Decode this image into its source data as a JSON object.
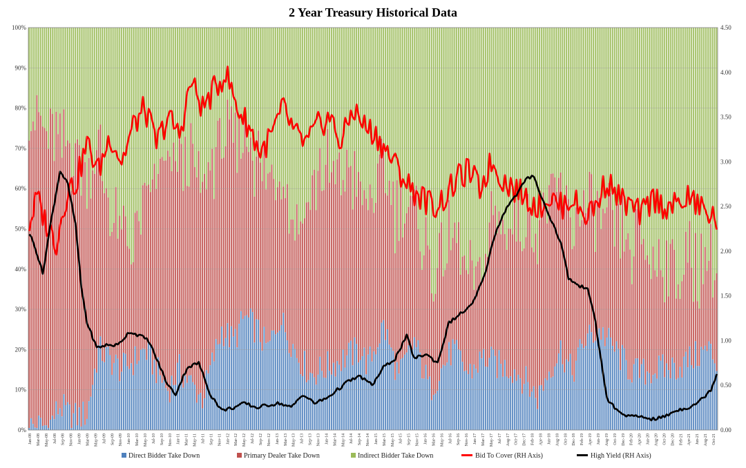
{
  "chart_data": {
    "type": "bar",
    "title": "2 Year Treasury  Historical Data",
    "stacked": true,
    "grid": true,
    "legend_position": "bottom",
    "colors": {
      "direct": "#4f81bd",
      "primary": "#c0504d",
      "indirect": "#9bbb59",
      "bid_to_cover": "#ff0000",
      "high_yield": "#000000"
    },
    "left_axis": {
      "ylim": [
        0,
        100
      ],
      "ticks": [
        "0%",
        "10%",
        "20%",
        "30%",
        "40%",
        "50%",
        "60%",
        "70%",
        "80%",
        "90%",
        "100%"
      ]
    },
    "right_axis": {
      "ylim": [
        0,
        4.5
      ],
      "ticks": [
        "0.00",
        "0.50",
        "1.00",
        "1.50",
        "2.00",
        "2.50",
        "3.00",
        "3.50",
        "4.00",
        "4.50"
      ]
    },
    "x_tick_labels": [
      "Jan-08",
      "Mar-08",
      "May-08",
      "Jul-08",
      "Sep-08",
      "Nov-08",
      "Jan-09",
      "Mar-09",
      "May-09",
      "Jul-09",
      "Sep-09",
      "Nov-09",
      "Jan-10",
      "Mar-10",
      "May-10",
      "Jul-10",
      "Sep-10",
      "Nov-10",
      "Jan-11",
      "Mar-11",
      "May-11",
      "Jul-11",
      "Sep-11",
      "Nov-11",
      "Jan-12",
      "Mar-12",
      "May-12",
      "Jul-12",
      "Sep-12",
      "Nov-12",
      "Jan-13",
      "Mar-13",
      "May-13",
      "Jul-13",
      "Sep-13",
      "Nov-13",
      "Jan-14",
      "Mar-14",
      "May-14",
      "Jul-14",
      "Sep-14",
      "Nov-14",
      "Jan-15",
      "Mar-15",
      "May-15",
      "Jul-15",
      "Sep-15",
      "Nov-15",
      "Jan-16",
      "Mar-16",
      "May-16",
      "Jul-16",
      "Sep-16",
      "Nov-16",
      "Jan-17",
      "Mar-17",
      "May-17",
      "Jul-17",
      "Aug-17",
      "Oct-17",
      "Dec-17",
      "Feb-18",
      "Apr-18",
      "Jun-18",
      "Aug-18",
      "Oct-18",
      "Dec-18",
      "Feb-19",
      "Apr-19",
      "Jun-19",
      "Aug-19",
      "Oct-19",
      "Dec-19",
      "Feb-20",
      "Apr-20",
      "Jun-20",
      "Aug-20",
      "Oct-20",
      "Dec-20",
      "Feb-21",
      "Apr-21",
      "Jun-21",
      "Aug-21",
      "Oct-21"
    ],
    "anchor_series": {
      "direct_take_down_pct": {
        "description_free": true,
        "x": [
          0,
          10,
          16,
          22,
          30,
          36,
          48,
          54,
          60,
          72,
          78,
          90,
          100,
          106,
          112,
          118,
          124,
          130,
          140,
          146,
          152,
          164,
          172,
          176,
          184,
          192,
          200,
          208,
          214,
          220,
          228,
          236,
          244,
          252,
          258,
          264,
          270,
          276,
          282,
          288,
          296,
          304,
          312,
          318,
          324,
          330,
          338,
          345,
          353,
          357
        ],
        "values": [
          1,
          1,
          6,
          3,
          4,
          20,
          15,
          17,
          20,
          10,
          15,
          8,
          25,
          22,
          28,
          25,
          20,
          28,
          18,
          14,
          15,
          18,
          20,
          16,
          26,
          13,
          22,
          10,
          15,
          20,
          14,
          18,
          16,
          15,
          12,
          8,
          15,
          20,
          14,
          22,
          25,
          20,
          15,
          14,
          15,
          15,
          16,
          18,
          20,
          17
        ]
      },
      "primary_dealer_take_down_pct": {
        "x": [
          0,
          6,
          12,
          18,
          24,
          30,
          36,
          42,
          48,
          54,
          60,
          66,
          72,
          78,
          84,
          90,
          96,
          102,
          108,
          114,
          120,
          126,
          132,
          138,
          144,
          150,
          156,
          162,
          168,
          174,
          180,
          186,
          192,
          198,
          204,
          210,
          216,
          222,
          228,
          234,
          240,
          246,
          252,
          258,
          264,
          270,
          276,
          282,
          288,
          294,
          300,
          306,
          312,
          318,
          324,
          330,
          336,
          342,
          348,
          357
        ],
        "values": [
          79,
          74,
          70,
          64,
          66,
          60,
          50,
          36,
          33,
          30,
          35,
          48,
          55,
          52,
          55,
          52,
          48,
          50,
          46,
          44,
          42,
          40,
          38,
          32,
          42,
          50,
          48,
          46,
          44,
          38,
          40,
          38,
          40,
          33,
          32,
          30,
          28,
          26,
          24,
          20,
          34,
          36,
          38,
          40,
          42,
          44,
          40,
          36,
          34,
          30,
          28,
          30,
          30,
          32,
          28,
          26,
          25,
          24,
          22,
          23
        ]
      },
      "bid_to_cover": {
        "x": [
          0,
          4,
          8,
          14,
          20,
          24,
          30,
          36,
          42,
          48,
          54,
          60,
          66,
          72,
          78,
          84,
          90,
          96,
          102,
          108,
          114,
          120,
          126,
          132,
          138,
          144,
          150,
          156,
          162,
          168,
          174,
          180,
          186,
          192,
          198,
          204,
          210,
          216,
          222,
          228,
          234,
          240,
          246,
          252,
          258,
          264,
          270,
          276,
          282,
          288,
          294,
          300,
          306,
          312,
          318,
          324,
          330,
          336,
          342,
          348,
          357
        ],
        "values": [
          2.3,
          2.6,
          2.35,
          2.1,
          2.7,
          2.75,
          3.2,
          2.9,
          3.3,
          3.0,
          3.4,
          3.6,
          3.2,
          3.5,
          3.3,
          3.9,
          3.6,
          3.8,
          4.0,
          3.6,
          3.4,
          3.1,
          3.3,
          3.6,
          3.3,
          3.2,
          3.4,
          3.5,
          3.2,
          3.6,
          3.4,
          3.3,
          3.1,
          2.9,
          2.7,
          2.6,
          2.5,
          2.6,
          2.8,
          2.9,
          2.7,
          3.0,
          2.8,
          2.7,
          2.6,
          2.5,
          2.6,
          2.5,
          2.6,
          2.4,
          2.5,
          2.8,
          2.6,
          2.5,
          2.4,
          2.6,
          2.5,
          2.5,
          2.6,
          2.5,
          2.35
        ]
      },
      "high_yield": {
        "x": [
          0,
          3,
          7,
          11,
          16,
          20,
          24,
          27,
          30,
          35,
          40,
          46,
          52,
          58,
          62,
          66,
          72,
          76,
          82,
          88,
          94,
          100,
          106,
          112,
          118,
          124,
          130,
          136,
          142,
          148,
          154,
          160,
          166,
          172,
          178,
          184,
          190,
          196,
          200,
          206,
          212,
          218,
          224,
          230,
          236,
          242,
          248,
          252,
          258,
          262,
          266,
          270,
          276,
          280,
          286,
          290,
          294,
          300,
          306,
          312,
          318,
          324,
          330,
          336,
          342,
          348,
          354,
          357
        ],
        "values": [
          2.2,
          2.05,
          1.75,
          2.3,
          2.9,
          2.75,
          2.3,
          1.6,
          1.2,
          0.92,
          0.95,
          0.95,
          1.1,
          1.05,
          1.0,
          0.8,
          0.5,
          0.4,
          0.7,
          0.75,
          0.4,
          0.22,
          0.25,
          0.3,
          0.25,
          0.28,
          0.3,
          0.25,
          0.4,
          0.3,
          0.35,
          0.45,
          0.55,
          0.6,
          0.5,
          0.7,
          0.8,
          1.05,
          0.8,
          0.85,
          0.75,
          1.2,
          1.3,
          1.4,
          1.7,
          2.2,
          2.5,
          2.6,
          2.8,
          2.85,
          2.6,
          2.4,
          2.1,
          1.7,
          1.6,
          1.6,
          1.2,
          0.35,
          0.2,
          0.15,
          0.15,
          0.12,
          0.15,
          0.22,
          0.25,
          0.32,
          0.45,
          0.63
        ]
      }
    },
    "legend": [
      {
        "label": "Direct Bidder Take Down",
        "color_key": "direct",
        "style": "swatch"
      },
      {
        "label": "Primary Dealer Take Down",
        "color_key": "primary",
        "style": "swatch"
      },
      {
        "label": "Indirect Bidder Take Down",
        "color_key": "indirect",
        "style": "swatch"
      },
      {
        "label": "Bid To Cover (RH Axis)",
        "color_key": "bid_to_cover",
        "style": "line"
      },
      {
        "label": "High Yield (RH Axis)",
        "color_key": "high_yield",
        "style": "line"
      }
    ]
  }
}
